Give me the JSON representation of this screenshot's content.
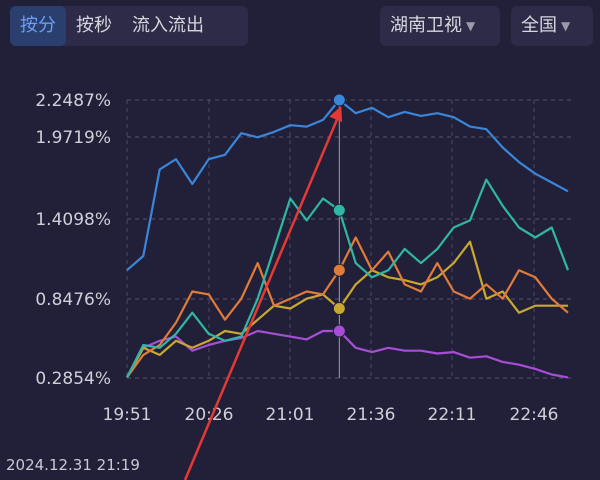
{
  "tabs": [
    {
      "label": "按分",
      "active": true
    },
    {
      "label": "按秒",
      "active": false
    },
    {
      "label": "流入流出",
      "active": false
    }
  ],
  "channel_select": {
    "label": "湖南卫视",
    "arrow_icon": "triangle-down-icon"
  },
  "region_select": {
    "label": "全国",
    "arrow_icon": "triangle-down-icon"
  },
  "timestamp": "2024.12.31 21:19",
  "colors": {
    "blue": "#3a86d8",
    "teal": "#2fb7a5",
    "orange": "#e07b3a",
    "yellow": "#c9a830",
    "purple": "#a64ed6",
    "annotation": "#e53935"
  },
  "chart_data": {
    "type": "line",
    "ytick_labels": [
      "2.2487%",
      "1.9719%",
      "1.4098%",
      "0.8476%",
      "0.2854%"
    ],
    "yticks": [
      2.2487,
      1.9719,
      1.4098,
      0.8476,
      0.2854
    ],
    "ylim": [
      0.2854,
      2.2487
    ],
    "x_labels": [
      "19:51",
      "20:26",
      "21:01",
      "21:36",
      "22:11",
      "22:46"
    ],
    "grid": true,
    "legend": "none",
    "x": [
      "19:51",
      "19:58",
      "20:05",
      "20:12",
      "20:19",
      "20:26",
      "20:33",
      "20:40",
      "20:47",
      "20:54",
      "21:01",
      "21:08",
      "21:15",
      "21:22",
      "21:29",
      "21:36",
      "21:43",
      "21:50",
      "21:57",
      "22:04",
      "22:11",
      "22:18",
      "22:25",
      "22:32",
      "22:39",
      "22:46",
      "22:53",
      "23:00"
    ],
    "series": [
      {
        "color": "blue",
        "values": [
          1.05,
          1.15,
          1.75,
          1.82,
          1.65,
          1.82,
          1.85,
          2.0,
          1.97,
          2.01,
          2.06,
          2.05,
          2.1,
          2.2487,
          2.15,
          2.19,
          2.12,
          2.16,
          2.13,
          2.15,
          2.12,
          2.05,
          2.03,
          1.9,
          1.8,
          1.72,
          1.66,
          1.6
        ]
      },
      {
        "color": "teal",
        "values": [
          0.29,
          0.52,
          0.5,
          0.6,
          0.75,
          0.6,
          0.55,
          0.58,
          0.85,
          1.2,
          1.55,
          1.4,
          1.55,
          1.47,
          1.1,
          1.0,
          1.05,
          1.2,
          1.1,
          1.2,
          1.35,
          1.4,
          1.68,
          1.5,
          1.35,
          1.28,
          1.35,
          1.05
        ]
      },
      {
        "color": "orange",
        "values": [
          0.29,
          0.45,
          0.52,
          0.68,
          0.9,
          0.88,
          0.7,
          0.85,
          1.1,
          0.8,
          0.85,
          0.9,
          0.88,
          1.05,
          1.28,
          1.05,
          1.18,
          0.95,
          0.9,
          1.1,
          0.9,
          0.85,
          0.95,
          0.85,
          1.05,
          1.0,
          0.85,
          0.75
        ]
      },
      {
        "color": "yellow",
        "values": [
          0.29,
          0.5,
          0.45,
          0.55,
          0.5,
          0.55,
          0.62,
          0.6,
          0.7,
          0.8,
          0.78,
          0.85,
          0.88,
          0.78,
          0.95,
          1.05,
          1.0,
          0.98,
          0.95,
          1.0,
          1.1,
          1.25,
          0.85,
          0.9,
          0.75,
          0.8,
          0.8,
          0.8
        ]
      },
      {
        "color": "purple",
        "values": [
          0.29,
          0.5,
          0.55,
          0.58,
          0.48,
          0.52,
          0.55,
          0.57,
          0.62,
          0.6,
          0.58,
          0.56,
          0.62,
          0.62,
          0.5,
          0.47,
          0.5,
          0.48,
          0.48,
          0.46,
          0.47,
          0.43,
          0.44,
          0.4,
          0.38,
          0.35,
          0.31,
          0.29
        ]
      }
    ],
    "crosshair_x": "21:22",
    "markers": [
      {
        "series_color": "blue",
        "x": "21:22",
        "y": 2.2487
      },
      {
        "series_color": "teal",
        "x": "21:22",
        "y": 1.47
      },
      {
        "series_color": "orange",
        "x": "21:22",
        "y": 1.05
      },
      {
        "series_color": "yellow",
        "x": "21:22",
        "y": 0.78
      },
      {
        "series_color": "purple",
        "x": "21:22",
        "y": 0.62
      }
    ],
    "annotation": {
      "type": "arrow",
      "color": "annotation",
      "points_to": {
        "x": "21:22",
        "y": 2.2487
      }
    }
  }
}
